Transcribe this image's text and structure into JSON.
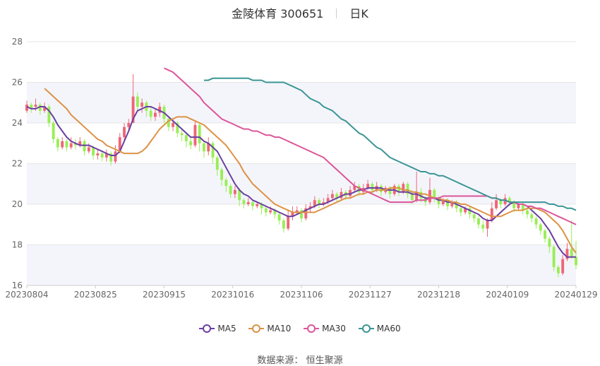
{
  "header": {
    "stock": "金陵体育 300651",
    "period": "日K"
  },
  "source": {
    "label": "数据来源：",
    "value": "恒生聚源"
  },
  "colors": {
    "up": "#ee6677",
    "down": "#99ee55",
    "ma5": "#6a3fa0",
    "ma10": "#dd9244",
    "ma30": "#dd5599",
    "ma60": "#3b9595",
    "grid": "#e6e6e6",
    "band": "#f4f5fb"
  },
  "chart_data": {
    "type": "candlestick",
    "xlabel": "",
    "ylabel": "",
    "ylim": [
      16,
      28
    ],
    "yticks": [
      16,
      18,
      20,
      22,
      24,
      26,
      28
    ],
    "xtick_labels": [
      "20230804",
      "20230825",
      "20230915",
      "20231016",
      "20231106",
      "20231127",
      "20231218",
      "20240109",
      "20240129"
    ],
    "legend": [
      {
        "name": "MA5",
        "key": "ma5"
      },
      {
        "name": "MA10",
        "key": "ma10"
      },
      {
        "name": "MA30",
        "key": "ma30"
      },
      {
        "name": "MA60",
        "key": "ma60"
      }
    ],
    "candles": [
      [
        24.6,
        24.9,
        25.1,
        24.5
      ],
      [
        24.9,
        24.7,
        25.0,
        24.5
      ],
      [
        24.8,
        24.9,
        25.2,
        24.6
      ],
      [
        24.9,
        24.6,
        25.0,
        24.4
      ],
      [
        24.6,
        24.8,
        25.0,
        24.5
      ],
      [
        24.8,
        24.0,
        24.9,
        23.8
      ],
      [
        24.0,
        23.2,
        24.1,
        23.0
      ],
      [
        23.2,
        22.8,
        23.3,
        22.6
      ],
      [
        22.8,
        23.1,
        23.3,
        22.7
      ],
      [
        23.1,
        22.8,
        23.2,
        22.6
      ],
      [
        22.8,
        23.0,
        23.3,
        22.7
      ],
      [
        23.0,
        22.9,
        23.2,
        22.7
      ],
      [
        22.9,
        23.1,
        23.3,
        22.8
      ],
      [
        23.1,
        22.6,
        23.2,
        22.4
      ],
      [
        22.6,
        22.8,
        23.0,
        22.5
      ],
      [
        22.8,
        22.4,
        22.9,
        22.2
      ],
      [
        22.4,
        22.5,
        22.7,
        22.2
      ],
      [
        22.5,
        22.3,
        22.6,
        22.1
      ],
      [
        22.3,
        22.5,
        22.7,
        22.1
      ],
      [
        22.5,
        22.1,
        22.6,
        21.9
      ],
      [
        22.1,
        22.6,
        22.9,
        22.0
      ],
      [
        22.6,
        23.3,
        23.5,
        22.5
      ],
      [
        23.3,
        23.8,
        24.0,
        23.1
      ],
      [
        23.8,
        24.0,
        24.2,
        23.6
      ],
      [
        24.0,
        25.3,
        26.4,
        24.0
      ],
      [
        25.3,
        24.8,
        25.5,
        24.6
      ],
      [
        24.8,
        25.0,
        25.2,
        24.5
      ],
      [
        25.0,
        24.6,
        25.1,
        24.3
      ],
      [
        24.6,
        24.3,
        24.8,
        24.1
      ],
      [
        24.3,
        24.5,
        24.7,
        24.1
      ],
      [
        24.5,
        24.8,
        25.0,
        24.3
      ],
      [
        24.8,
        24.2,
        24.9,
        24.0
      ],
      [
        24.2,
        23.8,
        24.3,
        23.6
      ],
      [
        23.8,
        24.0,
        24.2,
        23.6
      ],
      [
        24.0,
        23.5,
        24.1,
        23.3
      ],
      [
        23.5,
        23.4,
        23.7,
        23.1
      ],
      [
        23.4,
        23.1,
        23.5,
        22.8
      ],
      [
        23.1,
        22.9,
        23.3,
        22.7
      ],
      [
        22.9,
        23.9,
        24.1,
        22.8
      ],
      [
        23.9,
        23.0,
        24.0,
        22.6
      ],
      [
        23.0,
        22.6,
        23.1,
        22.3
      ],
      [
        22.6,
        23.0,
        23.3,
        22.4
      ],
      [
        23.0,
        22.3,
        23.1,
        22.0
      ],
      [
        22.3,
        21.7,
        22.4,
        21.4
      ],
      [
        21.7,
        21.2,
        21.8,
        20.9
      ],
      [
        21.2,
        20.9,
        21.3,
        20.6
      ],
      [
        20.9,
        20.5,
        21.0,
        20.3
      ],
      [
        20.5,
        20.7,
        20.9,
        20.3
      ],
      [
        20.7,
        20.2,
        20.8,
        19.9
      ],
      [
        20.2,
        20.0,
        20.3,
        19.8
      ],
      [
        20.0,
        20.1,
        20.3,
        19.9
      ],
      [
        20.1,
        19.9,
        20.2,
        19.7
      ],
      [
        19.9,
        20.0,
        20.1,
        19.8
      ],
      [
        20.0,
        19.8,
        20.1,
        19.5
      ],
      [
        19.8,
        19.6,
        19.9,
        19.4
      ],
      [
        19.6,
        19.7,
        19.9,
        19.5
      ],
      [
        19.7,
        19.5,
        19.8,
        19.3
      ],
      [
        19.5,
        19.2,
        19.6,
        19.0
      ],
      [
        19.2,
        18.8,
        19.3,
        18.6
      ],
      [
        18.8,
        19.4,
        19.7,
        18.7
      ],
      [
        19.4,
        19.6,
        19.9,
        19.2
      ],
      [
        19.6,
        19.7,
        19.9,
        19.5
      ],
      [
        19.7,
        19.3,
        19.8,
        19.1
      ],
      [
        19.3,
        19.8,
        20.0,
        19.2
      ],
      [
        19.8,
        19.9,
        20.1,
        19.6
      ],
      [
        19.9,
        20.2,
        20.4,
        19.8
      ],
      [
        20.2,
        20.0,
        20.3,
        19.8
      ],
      [
        20.0,
        20.1,
        20.3,
        19.9
      ],
      [
        20.1,
        20.3,
        20.5,
        20.0
      ],
      [
        20.3,
        20.5,
        20.7,
        20.2
      ],
      [
        20.5,
        20.3,
        20.6,
        20.1
      ],
      [
        20.3,
        20.6,
        20.8,
        20.2
      ],
      [
        20.6,
        20.4,
        20.7,
        20.2
      ],
      [
        20.4,
        20.7,
        20.9,
        20.3
      ],
      [
        20.7,
        20.9,
        21.1,
        20.6
      ],
      [
        20.9,
        20.6,
        21.0,
        20.4
      ],
      [
        20.6,
        20.8,
        21.0,
        20.5
      ],
      [
        20.8,
        21.0,
        21.2,
        20.7
      ],
      [
        21.0,
        20.7,
        21.1,
        20.5
      ],
      [
        20.7,
        20.9,
        21.1,
        20.6
      ],
      [
        20.9,
        20.6,
        21.0,
        20.4
      ],
      [
        20.6,
        20.8,
        20.9,
        20.5
      ],
      [
        20.8,
        20.5,
        20.9,
        20.3
      ],
      [
        20.5,
        20.9,
        21.0,
        20.4
      ],
      [
        20.9,
        20.6,
        21.0,
        20.4
      ],
      [
        20.6,
        21.0,
        21.1,
        20.5
      ],
      [
        21.0,
        20.5,
        21.1,
        20.3
      ],
      [
        20.5,
        20.2,
        20.7,
        20.0
      ],
      [
        20.2,
        20.6,
        21.6,
        20.1
      ],
      [
        20.6,
        20.3,
        20.8,
        20.1
      ],
      [
        20.3,
        20.1,
        20.4,
        19.9
      ],
      [
        20.1,
        20.7,
        21.3,
        20.0
      ],
      [
        20.7,
        20.3,
        20.8,
        20.1
      ],
      [
        20.3,
        20.0,
        20.4,
        19.8
      ],
      [
        20.0,
        20.2,
        20.3,
        19.9
      ],
      [
        20.2,
        19.9,
        20.3,
        19.7
      ],
      [
        19.9,
        20.1,
        20.2,
        19.8
      ],
      [
        20.1,
        19.8,
        20.2,
        19.6
      ],
      [
        19.8,
        19.6,
        19.9,
        19.4
      ],
      [
        19.6,
        19.8,
        19.9,
        19.5
      ],
      [
        19.8,
        19.5,
        19.9,
        19.3
      ],
      [
        19.5,
        19.3,
        19.6,
        19.1
      ],
      [
        19.3,
        19.0,
        19.4,
        18.8
      ],
      [
        19.0,
        18.8,
        19.2,
        18.6
      ],
      [
        18.8,
        19.2,
        19.3,
        18.4
      ],
      [
        19.2,
        19.8,
        20.1,
        19.1
      ],
      [
        19.8,
        20.2,
        20.5,
        19.7
      ],
      [
        20.2,
        20.0,
        20.3,
        19.8
      ],
      [
        20.0,
        20.3,
        20.5,
        19.9
      ],
      [
        20.3,
        20.1,
        20.4,
        19.9
      ],
      [
        20.1,
        19.8,
        20.2,
        19.6
      ],
      [
        19.8,
        20.0,
        20.1,
        19.7
      ],
      [
        20.0,
        19.7,
        20.1,
        19.5
      ],
      [
        19.7,
        19.5,
        19.8,
        19.3
      ],
      [
        19.5,
        19.3,
        19.6,
        19.1
      ],
      [
        19.3,
        19.0,
        19.4,
        18.8
      ],
      [
        19.0,
        18.7,
        19.1,
        18.5
      ],
      [
        18.7,
        18.3,
        18.8,
        18.1
      ],
      [
        18.3,
        17.9,
        18.4,
        17.6
      ],
      [
        17.9,
        16.9,
        18.0,
        16.7
      ],
      [
        16.9,
        16.6,
        17.0,
        16.4
      ],
      [
        16.6,
        17.3,
        17.5,
        16.5
      ],
      [
        17.3,
        17.8,
        18.1,
        17.2
      ],
      [
        17.8,
        17.4,
        19.2,
        17.3
      ],
      [
        17.4,
        17.0,
        18.2,
        16.8
      ]
    ],
    "ma5": [
      24.8,
      24.7,
      24.7,
      24.8,
      24.8,
      24.6,
      24.3,
      23.9,
      23.6,
      23.3,
      23.1,
      23.0,
      22.9,
      22.9,
      22.9,
      22.8,
      22.7,
      22.6,
      22.5,
      22.4,
      22.4,
      22.6,
      23.1,
      23.6,
      24.2,
      24.6,
      24.7,
      24.8,
      24.8,
      24.7,
      24.6,
      24.5,
      24.3,
      24.1,
      23.9,
      23.7,
      23.5,
      23.3,
      23.3,
      23.3,
      23.1,
      23.0,
      22.8,
      22.6,
      22.2,
      21.8,
      21.4,
      21.0,
      20.7,
      20.5,
      20.4,
      20.2,
      20.1,
      20.0,
      19.9,
      19.8,
      19.7,
      19.6,
      19.5,
      19.4,
      19.4,
      19.5,
      19.6,
      19.7,
      19.8,
      19.9,
      20.0,
      20.0,
      20.1,
      20.2,
      20.3,
      20.4,
      20.5,
      20.5,
      20.6,
      20.7,
      20.7,
      20.8,
      20.8,
      20.8,
      20.8,
      20.7,
      20.7,
      20.7,
      20.6,
      20.6,
      20.6,
      20.5,
      20.5,
      20.4,
      20.3,
      20.3,
      20.3,
      20.2,
      20.2,
      20.1,
      20.1,
      20.0,
      19.9,
      19.8,
      19.7,
      19.6,
      19.5,
      19.3,
      19.2,
      19.2,
      19.4,
      19.6,
      19.8,
      20.0,
      20.1,
      20.0,
      20.0,
      19.9,
      19.7,
      19.5,
      19.3,
      19.0,
      18.7,
      18.3,
      17.9,
      17.6,
      17.4,
      17.4,
      17.4
    ],
    "ma10": [
      25.7,
      25.5,
      25.3,
      25.1,
      24.9,
      24.7,
      24.4,
      24.2,
      24.0,
      23.8,
      23.6,
      23.4,
      23.2,
      23.1,
      22.9,
      22.8,
      22.7,
      22.6,
      22.5,
      22.5,
      22.5,
      22.5,
      22.6,
      22.8,
      23.1,
      23.4,
      23.7,
      23.9,
      24.1,
      24.2,
      24.3,
      24.3,
      24.3,
      24.2,
      24.1,
      24.0,
      23.9,
      23.7,
      23.5,
      23.3,
      23.1,
      22.9,
      22.6,
      22.3,
      22.0,
      21.6,
      21.3,
      21.0,
      20.8,
      20.6,
      20.4,
      20.2,
      20.0,
      19.9,
      19.8,
      19.7,
      19.6,
      19.6,
      19.6,
      19.6,
      19.6,
      19.6,
      19.7,
      19.8,
      19.9,
      20.0,
      20.1,
      20.2,
      20.3,
      20.3,
      20.4,
      20.5,
      20.5,
      20.6,
      20.6,
      20.7,
      20.7,
      20.7,
      20.8,
      20.8,
      20.8,
      20.7,
      20.7,
      20.6,
      20.6,
      20.5,
      20.5,
      20.4,
      20.3,
      20.3,
      20.2,
      20.2,
      20.1,
      20.1,
      20.0,
      20.0,
      19.9,
      19.8,
      19.7,
      19.6,
      19.5,
      19.4,
      19.4,
      19.4,
      19.5,
      19.6,
      19.7,
      19.7,
      19.7,
      19.8,
      19.8,
      19.8,
      19.7,
      19.6,
      19.4,
      19.2,
      19.0,
      18.7,
      18.3,
      17.9,
      17.6
    ],
    "ma30": [
      26.7,
      26.6,
      26.5,
      26.3,
      26.1,
      25.9,
      25.7,
      25.5,
      25.3,
      25.0,
      24.8,
      24.6,
      24.4,
      24.2,
      24.1,
      24.0,
      23.9,
      23.8,
      23.7,
      23.7,
      23.6,
      23.6,
      23.5,
      23.4,
      23.4,
      23.3,
      23.3,
      23.2,
      23.1,
      23.0,
      22.9,
      22.8,
      22.7,
      22.6,
      22.5,
      22.4,
      22.3,
      22.1,
      21.9,
      21.7,
      21.5,
      21.3,
      21.1,
      20.9,
      20.8,
      20.7,
      20.6,
      20.5,
      20.4,
      20.3,
      20.2,
      20.1,
      20.1,
      20.1,
      20.1,
      20.1,
      20.1,
      20.2,
      20.2,
      20.2,
      20.3,
      20.3,
      20.3,
      20.4,
      20.4,
      20.4,
      20.4,
      20.4,
      20.4,
      20.4,
      20.4,
      20.4,
      20.4,
      20.4,
      20.3,
      20.3,
      20.2,
      20.2,
      20.1,
      20.1,
      20.0,
      20.0,
      19.9,
      19.9,
      19.8,
      19.8,
      19.7,
      19.6,
      19.5,
      19.4,
      19.3,
      19.2,
      19.1,
      19.0
    ],
    "ma60": [
      26.1,
      26.1,
      26.2,
      26.2,
      26.2,
      26.2,
      26.2,
      26.2,
      26.2,
      26.2,
      26.2,
      26.1,
      26.1,
      26.1,
      26.0,
      26.0,
      26.0,
      26.0,
      26.0,
      25.9,
      25.8,
      25.7,
      25.6,
      25.4,
      25.2,
      25.1,
      25.0,
      24.8,
      24.7,
      24.6,
      24.4,
      24.2,
      24.1,
      23.9,
      23.7,
      23.5,
      23.4,
      23.2,
      23.0,
      22.8,
      22.7,
      22.5,
      22.3,
      22.2,
      22.1,
      22.0,
      21.9,
      21.8,
      21.7,
      21.6,
      21.6,
      21.5,
      21.5,
      21.4,
      21.4,
      21.3,
      21.2,
      21.1,
      21.0,
      20.9,
      20.8,
      20.7,
      20.6,
      20.5,
      20.4,
      20.3,
      20.3,
      20.2,
      20.2,
      20.1,
      20.1,
      20.1,
      20.1,
      20.1,
      20.1,
      20.1,
      20.1,
      20.1,
      20.0,
      20.0,
      19.9,
      19.9,
      19.8,
      19.8,
      19.7
    ]
  }
}
